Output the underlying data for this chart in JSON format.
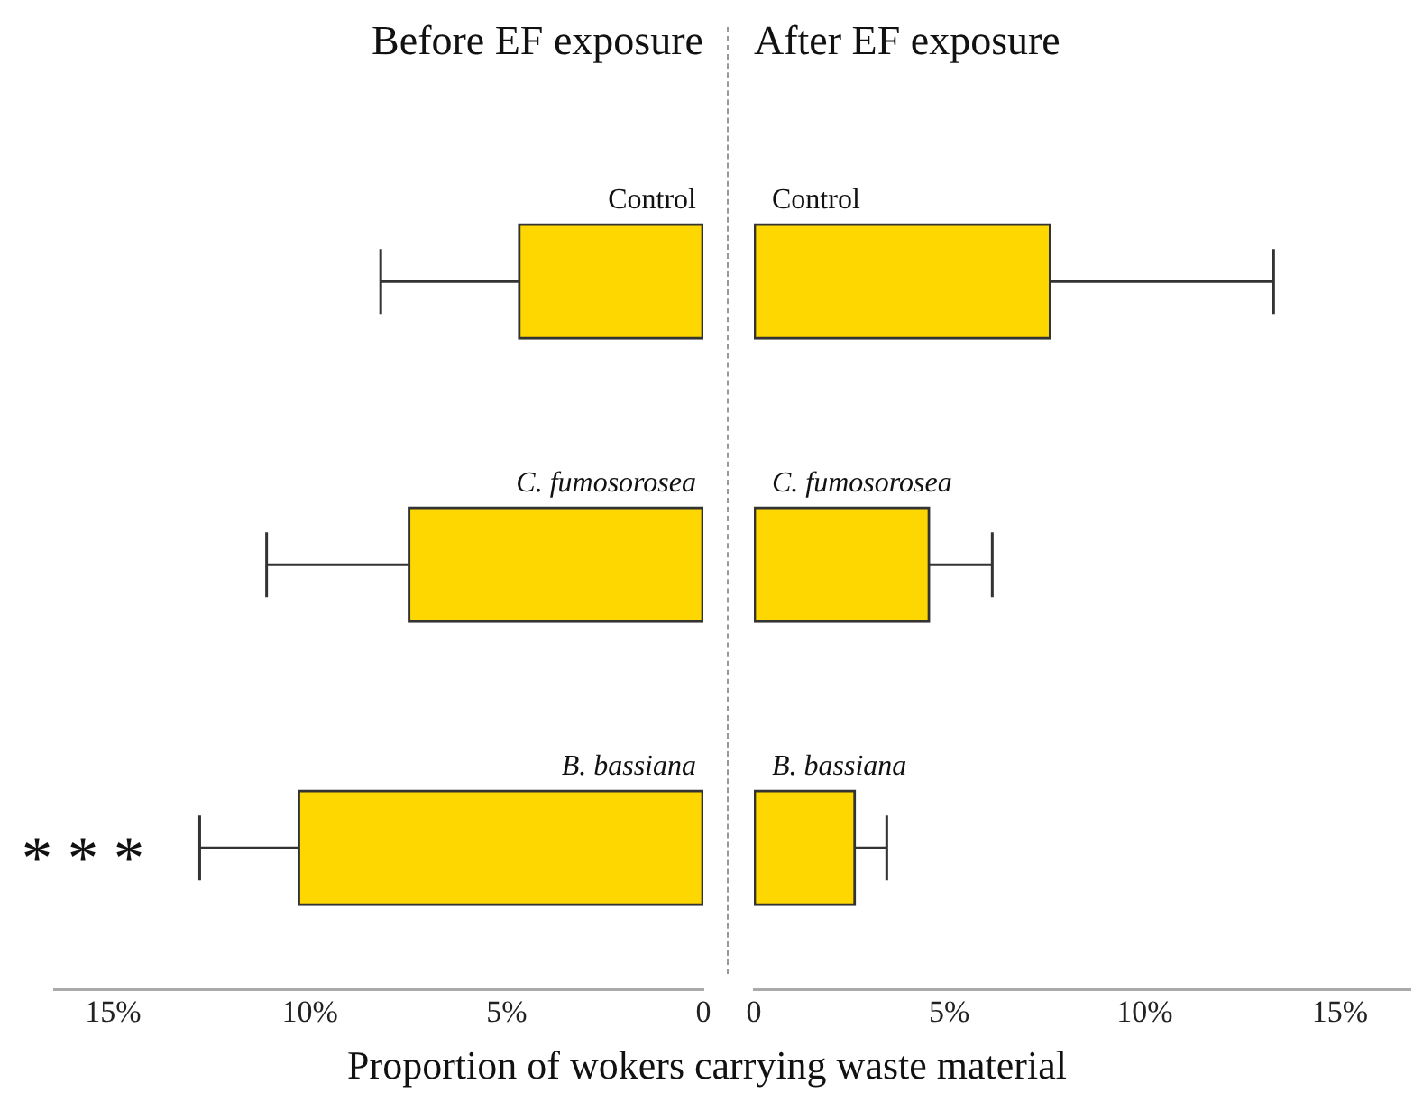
{
  "chart_data": [
    {
      "type": "bar",
      "orientation": "horizontal",
      "title": "Before EF exposure",
      "xlabel": "Proportion of wokers carrying waste material",
      "categories": [
        "Control",
        "C. fumosorosea",
        "B. bassiana"
      ],
      "values": [
        4.7,
        7.5,
        10.3
      ],
      "errors": [
        [
          4.7,
          8.2
        ],
        [
          7.5,
          11.1
        ],
        [
          10.3,
          12.8
        ]
      ],
      "color": "#ffd700",
      "xlim": [
        16.5,
        0
      ],
      "xticks": [
        {
          "value": 15,
          "label": "15%"
        },
        {
          "value": 10,
          "label": "10%"
        },
        {
          "value": 5,
          "label": "5%"
        },
        0
      ],
      "annotations": [
        "* * *"
      ],
      "grid": false,
      "legend": false
    },
    {
      "type": "bar",
      "orientation": "horizontal",
      "title": "After EF exposure",
      "categories": [
        "Control",
        "C. fumosorosea",
        "B. bassiana"
      ],
      "values": [
        7.6,
        4.5,
        2.6
      ],
      "errors": [
        [
          7.6,
          13.3
        ],
        [
          4.5,
          6.1
        ],
        [
          2.6,
          3.4
        ]
      ],
      "color": "#ffd700",
      "xlim": [
        0,
        16.8
      ],
      "xticks": [
        0,
        {
          "value": 5,
          "label": "5%"
        },
        {
          "value": 10,
          "label": "10%"
        },
        {
          "value": 15,
          "label": "15%"
        }
      ],
      "grid": false,
      "legend": false
    }
  ]
}
